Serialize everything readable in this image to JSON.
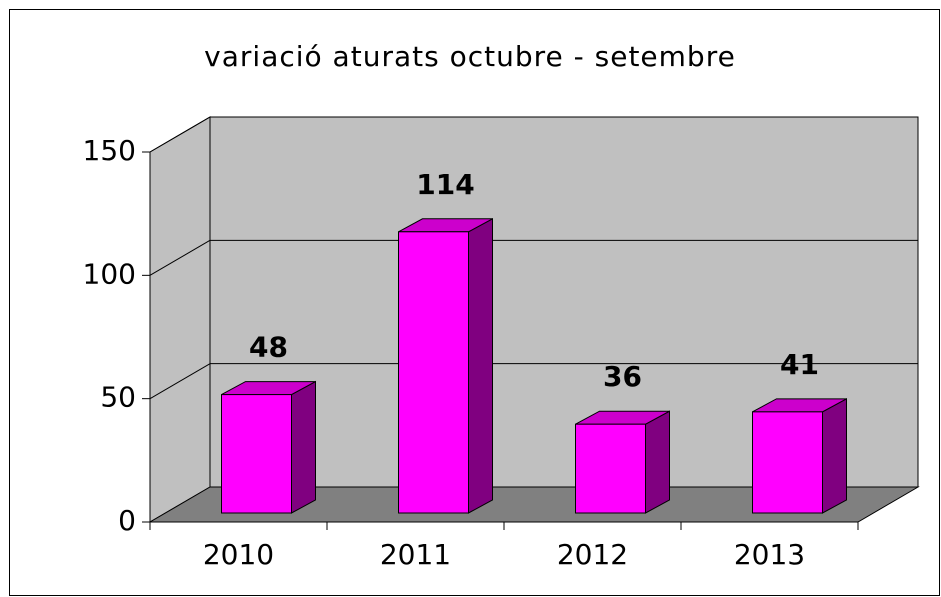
{
  "chart_data": {
    "type": "bar3d",
    "title": "variació aturats octubre - setembre",
    "categories": [
      "2010",
      "2011",
      "2012",
      "2013"
    ],
    "values": [
      48,
      114,
      36,
      41
    ],
    "color": "#ff00ff",
    "ylim": [
      0,
      150
    ],
    "yticks": [
      0,
      50,
      100,
      150
    ],
    "grid": true
  }
}
